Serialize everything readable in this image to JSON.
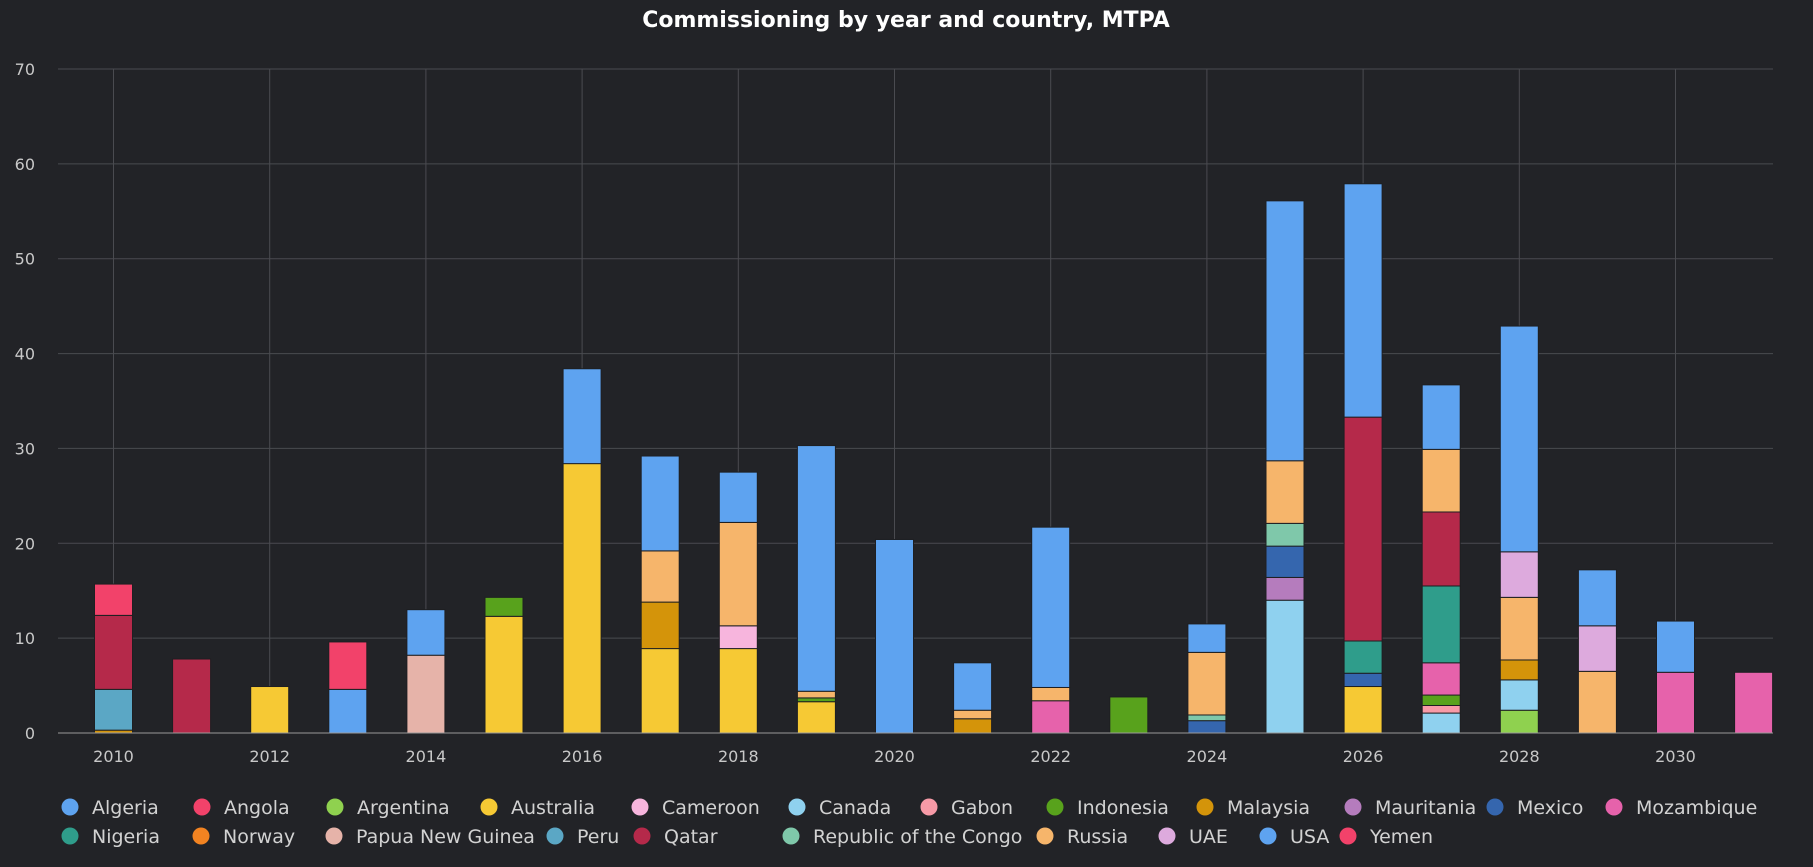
{
  "chart_data": {
    "type": "bar",
    "stacked": true,
    "title": "Commissioning by year and country, MTPA",
    "xlabel": "",
    "ylabel": "",
    "ylim": [
      0,
      70
    ],
    "yticks": [
      0,
      10,
      20,
      30,
      40,
      50,
      60,
      70
    ],
    "xticks": [
      2010,
      2012,
      2014,
      2016,
      2018,
      2020,
      2022,
      2024,
      2026,
      2028,
      2030
    ],
    "categories": [
      2010,
      2011,
      2012,
      2013,
      2014,
      2015,
      2016,
      2017,
      2018,
      2019,
      2020,
      2021,
      2022,
      2023,
      2024,
      2025,
      2026,
      2027,
      2028,
      2029,
      2030,
      2031
    ],
    "grid": true,
    "legend_position": "bottom",
    "series": [
      {
        "name": "Algeria",
        "color": "#5ea3f0",
        "values": [
          0,
          0,
          0,
          0,
          0,
          0,
          0,
          0,
          0,
          0,
          0,
          0,
          0,
          0,
          0,
          0,
          0,
          0,
          0,
          0,
          0,
          0
        ]
      },
      {
        "name": "Angola",
        "color": "#f2426a",
        "values": [
          0,
          0,
          0,
          0,
          0,
          0,
          0,
          0,
          0,
          0,
          0,
          0,
          0,
          0,
          0,
          0,
          0,
          0,
          0,
          0,
          0,
          0
        ]
      },
      {
        "name": "Argentina",
        "color": "#8fd14f",
        "values": [
          0,
          0,
          0,
          0,
          0,
          0,
          0,
          0,
          0,
          0,
          0,
          0,
          0,
          0,
          0,
          0,
          0,
          0,
          2.4,
          0,
          0,
          0
        ]
      },
      {
        "name": "Australia",
        "color": "#f6c934",
        "values": [
          0,
          0,
          4.9,
          0,
          0,
          12.3,
          28.4,
          8.9,
          8.9,
          3.3,
          0,
          0,
          0,
          0,
          0,
          0,
          4.9,
          0,
          0,
          0,
          0,
          0
        ]
      },
      {
        "name": "Cameroon",
        "color": "#f7b5dd",
        "values": [
          0,
          0,
          0,
          0,
          0,
          0,
          0,
          0,
          2.4,
          0,
          0,
          0,
          0,
          0,
          0,
          0,
          0,
          0,
          0,
          0,
          0,
          0
        ]
      },
      {
        "name": "Canada",
        "color": "#8fd1ef",
        "values": [
          0,
          0,
          0,
          0,
          0,
          0,
          0,
          0,
          0,
          0,
          0,
          0,
          0,
          0,
          0,
          14,
          0,
          2.1,
          3.2,
          0,
          0,
          0
        ]
      },
      {
        "name": "Gabon",
        "color": "#f79aa7",
        "values": [
          0,
          0,
          0,
          0,
          0,
          0,
          0,
          0,
          0,
          0,
          0,
          0,
          0,
          0,
          0,
          0,
          0,
          0.8,
          0,
          0,
          0,
          0
        ]
      },
      {
        "name": "Indonesia",
        "color": "#58a21c",
        "values": [
          0,
          0,
          0,
          0,
          0,
          2,
          0,
          0,
          0,
          0.4,
          0,
          0,
          0,
          3.8,
          0,
          0,
          0,
          1.1,
          0,
          0,
          0,
          0
        ]
      },
      {
        "name": "Malaysia",
        "color": "#d4940a",
        "values": [
          0.3,
          0,
          0,
          0,
          0,
          0,
          0,
          4.9,
          0,
          0,
          0,
          1.5,
          0,
          0,
          0,
          0,
          0,
          0,
          2.1,
          0,
          0,
          0
        ]
      },
      {
        "name": "Mauritania",
        "color": "#b57cbd",
        "values": [
          0,
          0,
          0,
          0,
          0,
          0,
          0,
          0,
          0,
          0,
          0,
          0,
          0,
          0,
          0,
          2.4,
          0,
          0,
          0,
          0,
          0,
          0
        ]
      },
      {
        "name": "Mexico",
        "color": "#3566ae",
        "values": [
          0,
          0,
          0,
          0,
          0,
          0,
          0,
          0,
          0,
          0,
          0,
          0,
          0,
          0,
          1.3,
          3.3,
          1.4,
          0,
          0,
          0,
          0,
          0
        ]
      },
      {
        "name": "Mozambique",
        "color": "#e662ab",
        "values": [
          0,
          0,
          0,
          0,
          0,
          0,
          0,
          0,
          0,
          0,
          0,
          0,
          3.4,
          0,
          0,
          0,
          0,
          3.4,
          0,
          0,
          6.4,
          6.4
        ]
      },
      {
        "name": "Nigeria",
        "color": "#2f9d8b",
        "values": [
          0,
          0,
          0,
          0,
          0,
          0,
          0,
          0,
          0,
          0,
          0,
          0,
          0,
          0,
          0,
          0,
          3.4,
          8.1,
          0,
          0,
          0,
          0
        ]
      },
      {
        "name": "Norway",
        "color": "#f28321",
        "values": [
          0,
          0,
          0,
          0,
          0,
          0,
          0,
          0,
          0,
          0,
          0,
          0,
          0,
          0,
          0,
          0,
          0,
          0,
          0,
          0,
          0,
          0
        ]
      },
      {
        "name": "Papua New Guinea",
        "color": "#e6b3a9",
        "values": [
          0,
          0,
          0,
          0,
          8.2,
          0,
          0,
          0,
          0,
          0,
          0,
          0,
          0,
          0,
          0,
          0,
          0,
          0,
          0,
          0,
          0,
          0
        ]
      },
      {
        "name": "Peru",
        "color": "#5ba7c5",
        "values": [
          4.3,
          0,
          0,
          0,
          0,
          0,
          0,
          0,
          0,
          0,
          0,
          0,
          0,
          0,
          0,
          0,
          0,
          0,
          0,
          0,
          0,
          0
        ]
      },
      {
        "name": "Qatar",
        "color": "#b5294a",
        "values": [
          7.8,
          7.8,
          0,
          0,
          0,
          0,
          0,
          0,
          0,
          0,
          0,
          0,
          0,
          0,
          0,
          0,
          23.6,
          7.8,
          0,
          0,
          0,
          0
        ]
      },
      {
        "name": "Republic of the Congo",
        "color": "#7fc8aa",
        "values": [
          0,
          0,
          0,
          0,
          0,
          0,
          0,
          0,
          0,
          0,
          0,
          0,
          0,
          0,
          0.6,
          2.4,
          0,
          0,
          0,
          0,
          0,
          0
        ]
      },
      {
        "name": "Russia",
        "color": "#f6b56b",
        "values": [
          0,
          0,
          0,
          0,
          0,
          0,
          0,
          5.4,
          10.9,
          0.7,
          0,
          0.9,
          1.4,
          0,
          6.6,
          6.6,
          0,
          6.6,
          6.6,
          6.5,
          0,
          0
        ]
      },
      {
        "name": "UAE",
        "color": "#ddaadd",
        "values": [
          0,
          0,
          0,
          0,
          0,
          0,
          0,
          0,
          0,
          0,
          0,
          0,
          0,
          0,
          0,
          0,
          0,
          0,
          4.8,
          4.8,
          0,
          0
        ]
      },
      {
        "name": "USA",
        "color": "#5ea3f0",
        "values": [
          0,
          0,
          0,
          4.6,
          4.8,
          0,
          10,
          10,
          5.3,
          25.9,
          20.4,
          5,
          16.9,
          0,
          3,
          27.4,
          24.6,
          6.8,
          23.8,
          5.9,
          5.4,
          0
        ]
      },
      {
        "name": "Yemen",
        "color": "#f2426a",
        "values": [
          3.3,
          0,
          0,
          5,
          0,
          0,
          0,
          0,
          0,
          0,
          0,
          0,
          0,
          0,
          0,
          0,
          0,
          0,
          0,
          0,
          0,
          0
        ]
      }
    ]
  }
}
